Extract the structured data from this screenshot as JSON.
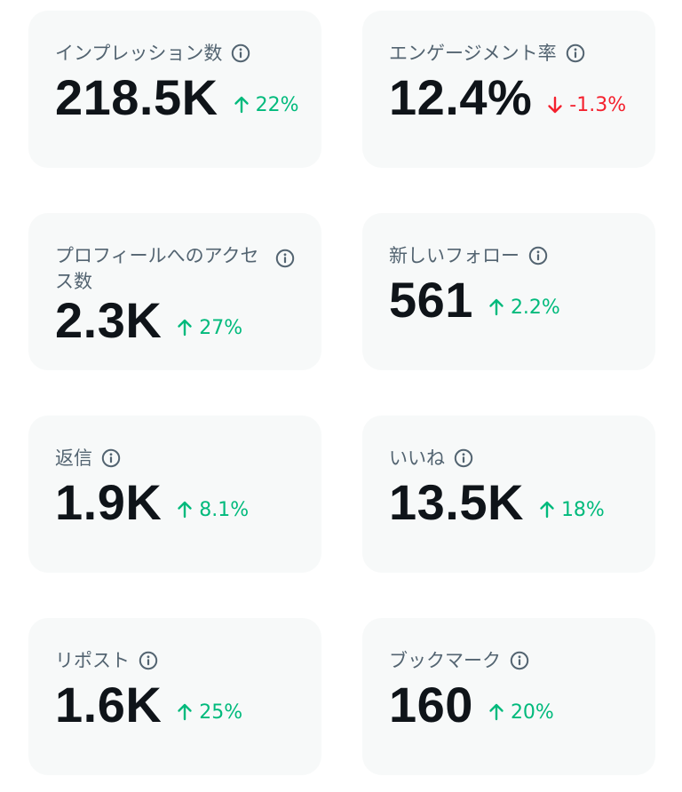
{
  "colors": {
    "card_bg": "#f7f9f9",
    "label": "#536471",
    "value": "#0f1419",
    "positive": "#00ba7c",
    "negative": "#f4212e"
  },
  "metrics": [
    {
      "label": "インプレッション数",
      "value": "218.5K",
      "delta": "22%",
      "direction": "up",
      "icon": "info-icon"
    },
    {
      "label": "エンゲージメント率",
      "value": "12.4%",
      "delta": "-1.3%",
      "direction": "down",
      "icon": "info-icon"
    },
    {
      "label": "プロフィールへのアクセス数",
      "value": "2.3K",
      "delta": "27%",
      "direction": "up",
      "icon": "info-icon"
    },
    {
      "label": "新しいフォロー",
      "value": "561",
      "delta": "2.2%",
      "direction": "up",
      "icon": "info-icon"
    },
    {
      "label": "返信",
      "value": "1.9K",
      "delta": "8.1%",
      "direction": "up",
      "icon": "info-icon"
    },
    {
      "label": "いいね",
      "value": "13.5K",
      "delta": "18%",
      "direction": "up",
      "icon": "info-icon"
    },
    {
      "label": "リポスト",
      "value": "1.6K",
      "delta": "25%",
      "direction": "up",
      "icon": "info-icon"
    },
    {
      "label": "ブックマーク",
      "value": "160",
      "delta": "20%",
      "direction": "up",
      "icon": "info-icon"
    }
  ]
}
